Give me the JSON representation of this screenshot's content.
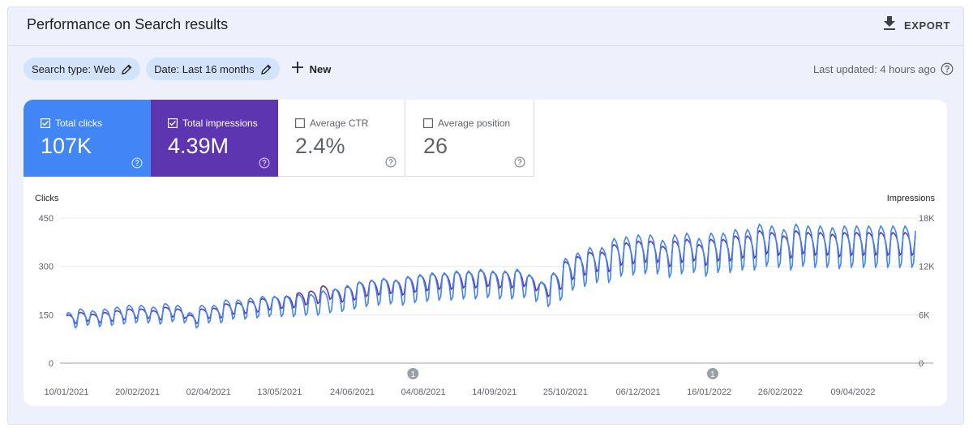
{
  "header": {
    "title": "Performance on Search results",
    "export_label": "EXPORT"
  },
  "filters": {
    "chips": [
      {
        "label": "Search type: Web"
      },
      {
        "label": "Date: Last 16 months"
      }
    ],
    "new_label": "New"
  },
  "last_updated": "Last updated: 4 hours ago",
  "metrics": [
    {
      "label": "Total clicks",
      "value": "107K",
      "checked": true
    },
    {
      "label": "Total impressions",
      "value": "4.39M",
      "checked": true
    },
    {
      "label": "Average CTR",
      "value": "2.4%",
      "checked": false
    },
    {
      "label": "Average position",
      "value": "26",
      "checked": false
    }
  ],
  "colors": {
    "clicks": "#4285f4",
    "impressions": "#5e35b1",
    "chip_bg": "#d2e3fc"
  },
  "chart_data": {
    "type": "line",
    "ylabel_left": "Clicks",
    "ylabel_right": "Impressions",
    "left_ticks": [
      "450",
      "300",
      "150",
      "0"
    ],
    "right_ticks": [
      "18K",
      "12K",
      "6K",
      "0"
    ],
    "ylim_left": [
      0,
      450
    ],
    "ylim_right": [
      0,
      18000
    ],
    "x_labels": [
      "10/01/2021",
      "20/02/2021",
      "02/04/2021",
      "13/05/2021",
      "24/06/2021",
      "04/08/2021",
      "14/09/2021",
      "25/10/2021",
      "06/12/2021",
      "16/01/2022",
      "26/02/2022",
      "09/04/2022"
    ],
    "annotations": [
      {
        "date": "29/07/2021",
        "label": "1"
      },
      {
        "date": "18/01/2022",
        "label": "1"
      }
    ],
    "series": [
      {
        "name": "Clicks",
        "axis": "left",
        "color": "#4285f4",
        "weekly_values": [
          140,
          150,
          145,
          150,
          155,
          160,
          160,
          155,
          165,
          160,
          140,
          160,
          160,
          175,
          175,
          180,
          185,
          185,
          185,
          190,
          190,
          200,
          205,
          215,
          225,
          230,
          235,
          230,
          240,
          245,
          250,
          250,
          255,
          255,
          260,
          255,
          255,
          260,
          245,
          225,
          250,
          290,
          305,
          320,
          320,
          345,
          350,
          355,
          355,
          340,
          355,
          360,
          345,
          360,
          360,
          370,
          370,
          385,
          380,
          370,
          385,
          380,
          380,
          375,
          380
        ]
      },
      {
        "name": "Impressions",
        "axis": "right",
        "color": "#5e35b1",
        "weekly_values": [
          5600,
          5900,
          5700,
          5900,
          6100,
          6300,
          6300,
          6100,
          6500,
          6300,
          5600,
          6300,
          6400,
          6900,
          7000,
          7200,
          7500,
          7700,
          7800,
          8200,
          8400,
          9000,
          8600,
          8900,
          9400,
          9600,
          9800,
          9600,
          10000,
          10200,
          10400,
          10400,
          10600,
          10600,
          10800,
          10600,
          10600,
          10800,
          10200,
          9400,
          10400,
          11800,
          12400,
          12900,
          12900,
          13800,
          14000,
          14200,
          14200,
          13600,
          14200,
          14400,
          13800,
          14400,
          14400,
          14800,
          14800,
          15400,
          15200,
          14800,
          15400,
          15200,
          15200,
          15000,
          15200
        ]
      }
    ]
  }
}
